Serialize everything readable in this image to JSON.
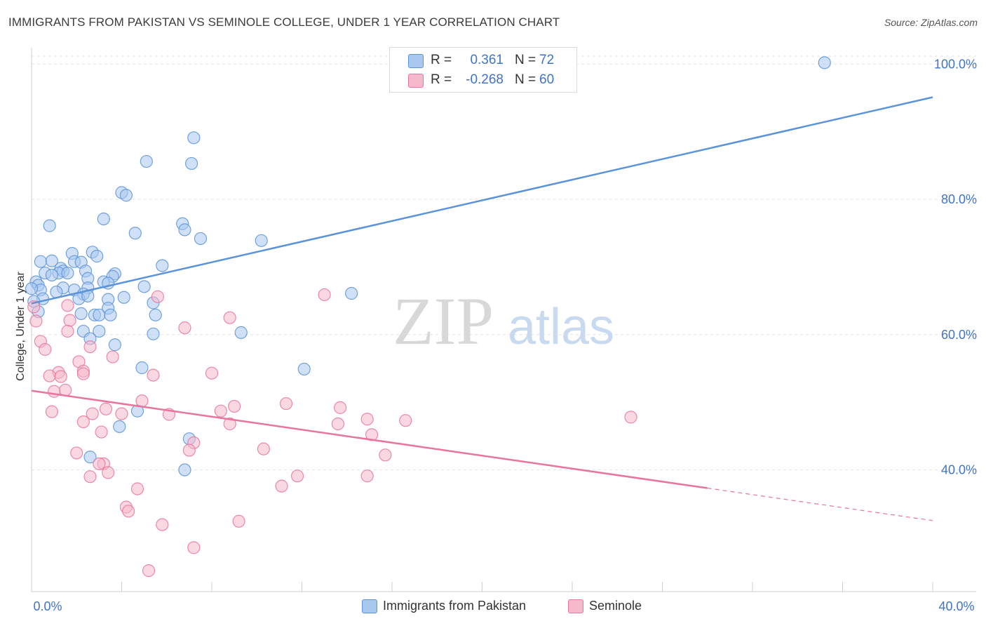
{
  "header": {
    "title": "IMMIGRANTS FROM PAKISTAN VS SEMINOLE COLLEGE, UNDER 1 YEAR CORRELATION CHART",
    "source": "Source: ZipAtlas.com"
  },
  "watermark": {
    "zip": "ZIP",
    "atlas": "atlas"
  },
  "legend": {
    "rows": [
      {
        "r_label": "R =",
        "r_value": "0.361",
        "n_label": "N =",
        "n_value": "72",
        "color": "#a9c8f0"
      },
      {
        "r_label": "R =",
        "r_value": "-0.268",
        "n_label": "N =",
        "n_value": "60",
        "color": "#f6b8cb"
      }
    ]
  },
  "bottom_legend": [
    {
      "label": "Immigrants from Pakistan",
      "color": "#a9c8f0"
    },
    {
      "label": "Seminole",
      "color": "#f6b8cb"
    }
  ],
  "chart_data": {
    "type": "scatter",
    "title": "IMMIGRANTS FROM PAKISTAN VS SEMINOLE COLLEGE, UNDER 1 YEAR CORRELATION CHART",
    "xlabel": "",
    "ylabel": "College, Under 1 year",
    "xlim": [
      0,
      40
    ],
    "ylim": [
      22,
      102
    ],
    "x_tick_labels": [
      "0.0%",
      "40.0%"
    ],
    "y_ticks": [
      40,
      60,
      80,
      100
    ],
    "y_tick_labels": [
      "40.0%",
      "60.0%",
      "80.0%",
      "100.0%"
    ],
    "grid": true,
    "series": [
      {
        "name": "Immigrants from Pakistan",
        "color": "#5b93d9",
        "fill": "#a9c8f0",
        "trend": {
          "x": [
            0,
            40
          ],
          "y": [
            64.6,
            95.1
          ],
          "dashed_from": null
        },
        "points": [
          [
            35.2,
            100.2
          ],
          [
            7.2,
            89.1
          ],
          [
            5.1,
            85.6
          ],
          [
            7.1,
            85.3
          ],
          [
            4.0,
            81.0
          ],
          [
            4.2,
            80.6
          ],
          [
            3.2,
            77.1
          ],
          [
            0.8,
            76.1
          ],
          [
            6.7,
            76.4
          ],
          [
            6.8,
            75.5
          ],
          [
            4.6,
            75.0
          ],
          [
            7.5,
            74.2
          ],
          [
            10.2,
            73.9
          ],
          [
            2.7,
            72.2
          ],
          [
            1.8,
            72.0
          ],
          [
            2.9,
            71.6
          ],
          [
            0.4,
            70.8
          ],
          [
            0.9,
            70.9
          ],
          [
            1.9,
            70.8
          ],
          [
            2.2,
            70.7
          ],
          [
            5.8,
            70.2
          ],
          [
            1.3,
            69.8
          ],
          [
            1.4,
            69.4
          ],
          [
            2.4,
            69.4
          ],
          [
            1.2,
            69.1
          ],
          [
            0.6,
            69.1
          ],
          [
            1.6,
            69.1
          ],
          [
            0.9,
            68.8
          ],
          [
            3.7,
            69.0
          ],
          [
            3.6,
            68.6
          ],
          [
            2.5,
            68.3
          ],
          [
            0.2,
            67.8
          ],
          [
            3.2,
            67.8
          ],
          [
            3.4,
            67.6
          ],
          [
            5.0,
            67.1
          ],
          [
            0.3,
            67.3
          ],
          [
            0.4,
            66.6
          ],
          [
            1.4,
            66.9
          ],
          [
            1.9,
            66.6
          ],
          [
            2.5,
            66.9
          ],
          [
            1.1,
            66.3
          ],
          [
            2.3,
            66.0
          ],
          [
            14.2,
            66.1
          ],
          [
            2.1,
            65.3
          ],
          [
            4.1,
            65.5
          ],
          [
            0.5,
            65.3
          ],
          [
            2.5,
            65.7
          ],
          [
            3.4,
            65.2
          ],
          [
            0.1,
            64.9
          ],
          [
            5.4,
            64.7
          ],
          [
            3.4,
            63.9
          ],
          [
            2.2,
            63.1
          ],
          [
            2.8,
            62.9
          ],
          [
            3.0,
            62.9
          ],
          [
            3.5,
            62.9
          ],
          [
            5.5,
            62.9
          ],
          [
            2.3,
            60.5
          ],
          [
            3.0,
            60.5
          ],
          [
            5.4,
            60.1
          ],
          [
            9.3,
            60.3
          ],
          [
            2.6,
            59.4
          ],
          [
            3.7,
            58.5
          ],
          [
            4.9,
            55.1
          ],
          [
            12.1,
            54.9
          ],
          [
            4.7,
            48.7
          ],
          [
            3.9,
            46.4
          ],
          [
            7.0,
            44.6
          ],
          [
            2.6,
            41.9
          ],
          [
            6.8,
            40.0
          ],
          [
            17.0,
            96.9
          ],
          [
            0.0,
            66.8
          ],
          [
            0.3,
            63.4
          ]
        ]
      },
      {
        "name": "Seminole",
        "color": "#e8759b",
        "fill": "#f6b8cb",
        "trend": {
          "x": [
            0,
            40
          ],
          "y": [
            51.7,
            32.5
          ],
          "dashed_from": 30.0
        },
        "points": [
          [
            0.1,
            64.1
          ],
          [
            0.2,
            62.0
          ],
          [
            5.6,
            65.6
          ],
          [
            13.0,
            65.9
          ],
          [
            1.6,
            64.3
          ],
          [
            8.8,
            62.5
          ],
          [
            1.7,
            62.1
          ],
          [
            6.8,
            61.0
          ],
          [
            1.6,
            60.5
          ],
          [
            0.4,
            59.0
          ],
          [
            2.6,
            58.2
          ],
          [
            0.6,
            57.8
          ],
          [
            3.6,
            56.7
          ],
          [
            2.1,
            56.0
          ],
          [
            1.2,
            54.4
          ],
          [
            2.3,
            54.6
          ],
          [
            8.0,
            54.3
          ],
          [
            0.8,
            53.9
          ],
          [
            1.3,
            53.8
          ],
          [
            2.3,
            54.2
          ],
          [
            5.4,
            54.0
          ],
          [
            1.5,
            51.8
          ],
          [
            1.0,
            51.6
          ],
          [
            4.9,
            50.2
          ],
          [
            11.3,
            49.8
          ],
          [
            9.0,
            49.4
          ],
          [
            13.7,
            49.2
          ],
          [
            3.3,
            49.0
          ],
          [
            8.4,
            48.7
          ],
          [
            0.9,
            48.6
          ],
          [
            4.0,
            48.3
          ],
          [
            6.1,
            48.2
          ],
          [
            2.7,
            48.3
          ],
          [
            14.9,
            47.5
          ],
          [
            16.6,
            47.3
          ],
          [
            26.6,
            47.8
          ],
          [
            2.3,
            47.1
          ],
          [
            8.8,
            46.8
          ],
          [
            13.6,
            46.8
          ],
          [
            3.1,
            45.6
          ],
          [
            15.1,
            45.2
          ],
          [
            7.2,
            44.0
          ],
          [
            7.0,
            42.9
          ],
          [
            10.3,
            43.1
          ],
          [
            15.7,
            42.2
          ],
          [
            3.2,
            40.9
          ],
          [
            3.0,
            40.9
          ],
          [
            3.4,
            39.6
          ],
          [
            2.6,
            39.0
          ],
          [
            11.8,
            39.1
          ],
          [
            14.9,
            39.1
          ],
          [
            11.1,
            37.6
          ],
          [
            4.7,
            37.2
          ],
          [
            4.2,
            34.5
          ],
          [
            4.3,
            33.9
          ],
          [
            5.8,
            31.9
          ],
          [
            9.2,
            32.4
          ],
          [
            7.2,
            28.5
          ],
          [
            5.2,
            25.1
          ],
          [
            2.0,
            42.5
          ]
        ]
      }
    ]
  }
}
